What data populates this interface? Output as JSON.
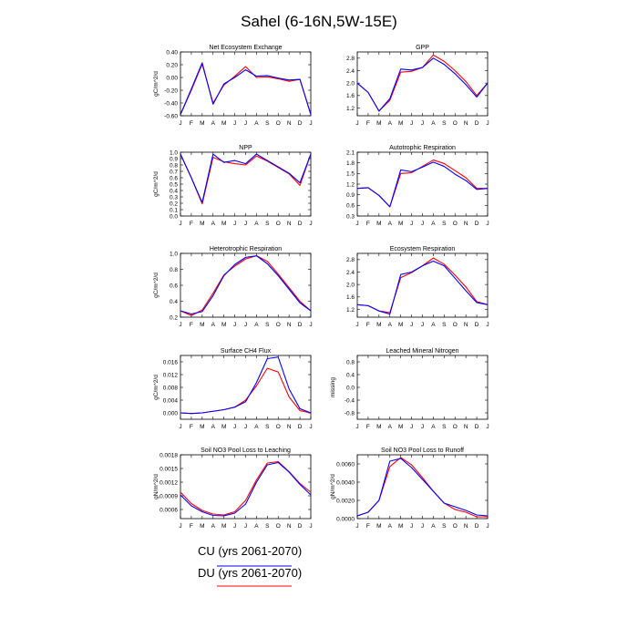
{
  "title": "Sahel (6-16N,5W-15E)",
  "legend": [
    {
      "label": "CU (yrs 2061-2070)",
      "color": "#0000ff"
    },
    {
      "label": "DU (yrs 2061-2070)",
      "color": "#ff0000"
    }
  ],
  "chart_data": [
    {
      "type": "line",
      "title": "Net Ecosystem Exchange",
      "ylabel": "gC/m^2/d",
      "categories": [
        "J",
        "F",
        "M",
        "A",
        "M",
        "J",
        "J",
        "A",
        "S",
        "O",
        "N",
        "D",
        "J"
      ],
      "ylim": [
        -0.6,
        0.4
      ],
      "yticks": [
        -0.6,
        -0.4,
        -0.2,
        0.0,
        0.2,
        0.4
      ],
      "ytick_labels": [
        "-0.60",
        "-0.40",
        "-0.20",
        "0.00",
        "0.20",
        "0.40"
      ],
      "series": [
        {
          "name": "CU (yrs 2061-2070)",
          "color": "#0000ff",
          "values": [
            -0.58,
            -0.18,
            0.23,
            -0.42,
            -0.1,
            0.0,
            0.12,
            0.02,
            0.03,
            -0.01,
            -0.04,
            -0.03,
            -0.58
          ]
        },
        {
          "name": "DU (yrs 2061-2070)",
          "color": "#ff0000",
          "values": [
            -0.58,
            -0.2,
            0.21,
            -0.4,
            -0.12,
            0.02,
            0.17,
            0.0,
            0.01,
            -0.02,
            -0.06,
            -0.03,
            -0.58
          ]
        }
      ]
    },
    {
      "type": "line",
      "title": "GPP",
      "ylabel": "",
      "categories": [
        "J",
        "F",
        "M",
        "A",
        "M",
        "J",
        "J",
        "A",
        "S",
        "O",
        "N",
        "D",
        "J"
      ],
      "ylim": [
        0.95,
        3.0
      ],
      "yticks": [
        1.2,
        1.6,
        2.0,
        2.4,
        2.8
      ],
      "ytick_labels": [
        "1.2",
        "1.6",
        "2.0",
        "2.4",
        "2.8"
      ],
      "series": [
        {
          "name": "CU (yrs 2061-2070)",
          "color": "#0000ff",
          "values": [
            2.0,
            1.7,
            1.1,
            1.5,
            2.45,
            2.42,
            2.5,
            2.8,
            2.6,
            2.3,
            1.95,
            1.55,
            2.0
          ]
        },
        {
          "name": "DU (yrs 2061-2070)",
          "color": "#ff0000",
          "values": [
            2.0,
            1.7,
            1.1,
            1.45,
            2.35,
            2.38,
            2.5,
            2.9,
            2.7,
            2.4,
            2.05,
            1.6,
            2.0
          ]
        }
      ]
    },
    {
      "type": "line",
      "title": "NPP",
      "ylabel": "gC/m^2/d",
      "categories": [
        "J",
        "F",
        "M",
        "A",
        "M",
        "J",
        "J",
        "A",
        "S",
        "O",
        "N",
        "D",
        "J"
      ],
      "ylim": [
        0.0,
        1.0
      ],
      "yticks": [
        0.0,
        0.1,
        0.2,
        0.3,
        0.4,
        0.5,
        0.6,
        0.7,
        0.8,
        0.9,
        1.0
      ],
      "ytick_labels": [
        "0.0",
        "0.1",
        "0.2",
        "0.3",
        "0.4",
        "0.5",
        "0.6",
        "0.7",
        "0.8",
        "0.9",
        "1.0"
      ],
      "series": [
        {
          "name": "CU (yrs 2061-2070)",
          "color": "#0000ff",
          "values": [
            0.97,
            0.6,
            0.21,
            0.97,
            0.84,
            0.87,
            0.82,
            0.97,
            0.87,
            0.77,
            0.67,
            0.52,
            0.97
          ]
        },
        {
          "name": "DU (yrs 2061-2070)",
          "color": "#ff0000",
          "values": [
            0.97,
            0.6,
            0.19,
            0.92,
            0.85,
            0.82,
            0.8,
            0.94,
            0.86,
            0.76,
            0.66,
            0.48,
            0.97
          ]
        }
      ]
    },
    {
      "type": "line",
      "title": "Autotrophic Respiration",
      "ylabel": "",
      "categories": [
        "J",
        "F",
        "M",
        "A",
        "M",
        "J",
        "J",
        "A",
        "S",
        "O",
        "N",
        "D",
        "J"
      ],
      "ylim": [
        0.3,
        2.1
      ],
      "yticks": [
        0.3,
        0.6,
        0.9,
        1.2,
        1.5,
        1.8,
        2.1
      ],
      "ytick_labels": [
        "0.3",
        "0.6",
        "0.9",
        "1.2",
        "1.5",
        "1.8",
        "2.1"
      ],
      "series": [
        {
          "name": "CU (yrs 2061-2070)",
          "color": "#0000ff",
          "values": [
            1.08,
            1.1,
            0.88,
            0.56,
            1.6,
            1.55,
            1.68,
            1.82,
            1.7,
            1.48,
            1.3,
            1.05,
            1.08
          ]
        },
        {
          "name": "DU (yrs 2061-2070)",
          "color": "#ff0000",
          "values": [
            1.08,
            1.1,
            0.88,
            0.56,
            1.5,
            1.52,
            1.7,
            1.88,
            1.78,
            1.58,
            1.38,
            1.08,
            1.08
          ]
        }
      ]
    },
    {
      "type": "line",
      "title": "Heterotrophic Respiration",
      "ylabel": "gC/m^2/d",
      "categories": [
        "J",
        "F",
        "M",
        "A",
        "M",
        "J",
        "J",
        "A",
        "S",
        "O",
        "N",
        "D",
        "J"
      ],
      "ylim": [
        0.2,
        1.0
      ],
      "yticks": [
        0.2,
        0.4,
        0.6,
        0.8,
        1.0
      ],
      "ytick_labels": [
        "0.2",
        "0.4",
        "0.6",
        "0.8",
        "1.0"
      ],
      "series": [
        {
          "name": "CU (yrs 2061-2070)",
          "color": "#0000ff",
          "values": [
            0.28,
            0.24,
            0.27,
            0.47,
            0.72,
            0.86,
            0.95,
            0.97,
            0.87,
            0.72,
            0.55,
            0.38,
            0.28
          ]
        },
        {
          "name": "DU (yrs 2061-2070)",
          "color": "#ff0000",
          "values": [
            0.28,
            0.22,
            0.29,
            0.5,
            0.73,
            0.84,
            0.93,
            0.97,
            0.9,
            0.74,
            0.57,
            0.4,
            0.28
          ]
        }
      ]
    },
    {
      "type": "line",
      "title": "Ecosystem Respiration",
      "ylabel": "",
      "categories": [
        "J",
        "F",
        "M",
        "A",
        "M",
        "J",
        "J",
        "A",
        "S",
        "O",
        "N",
        "D",
        "J"
      ],
      "ylim": [
        0.95,
        3.0
      ],
      "yticks": [
        1.2,
        1.6,
        2.0,
        2.4,
        2.8
      ],
      "ytick_labels": [
        "1.2",
        "1.6",
        "2.0",
        "2.4",
        "2.8"
      ],
      "series": [
        {
          "name": "CU (yrs 2061-2070)",
          "color": "#0000ff",
          "values": [
            1.35,
            1.32,
            1.15,
            1.05,
            2.32,
            2.4,
            2.6,
            2.75,
            2.6,
            2.2,
            1.8,
            1.42,
            1.35
          ]
        },
        {
          "name": "DU (yrs 2061-2070)",
          "color": "#ff0000",
          "values": [
            1.35,
            1.32,
            1.15,
            1.1,
            2.22,
            2.38,
            2.6,
            2.85,
            2.65,
            2.3,
            1.92,
            1.45,
            1.35
          ]
        }
      ]
    },
    {
      "type": "line",
      "title": "Surface CH4 Flux",
      "ylabel": "gC/m^2/d",
      "categories": [
        "J",
        "F",
        "M",
        "A",
        "M",
        "J",
        "J",
        "A",
        "S",
        "O",
        "N",
        "D",
        "J"
      ],
      "ylim": [
        -0.002,
        0.018
      ],
      "yticks": [
        0.0,
        0.004,
        0.008,
        0.012,
        0.016
      ],
      "ytick_labels": [
        "0.000",
        "0.004",
        "0.008",
        "0.012",
        "0.016"
      ],
      "series": [
        {
          "name": "CU (yrs 2061-2070)",
          "color": "#0000ff",
          "values": [
            0.0,
            -0.0002,
            0.0,
            0.0005,
            0.001,
            0.0018,
            0.0035,
            0.0095,
            0.017,
            0.0175,
            0.0075,
            0.0013,
            0.0
          ]
        },
        {
          "name": "DU (yrs 2061-2070)",
          "color": "#ff0000",
          "values": [
            0.0,
            -0.0002,
            0.0,
            0.0005,
            0.001,
            0.0018,
            0.004,
            0.0085,
            0.014,
            0.0128,
            0.005,
            0.0007,
            0.0
          ]
        }
      ]
    },
    {
      "type": "line",
      "title": "Leached Mineral Nitrogen",
      "ylabel": "missing",
      "categories": [
        "J",
        "F",
        "M",
        "A",
        "M",
        "J",
        "J",
        "A",
        "S",
        "O",
        "N",
        "D",
        "J"
      ],
      "ylim": [
        -1.0,
        1.0
      ],
      "yticks": [
        -0.8,
        -0.4,
        0.0,
        0.4,
        0.8
      ],
      "ytick_labels": [
        "-0.8",
        "-0.4",
        "0.0",
        "0.4",
        "0.8"
      ],
      "series": []
    },
    {
      "type": "line",
      "title": "Soil NO3 Pool Loss to Leaching",
      "ylabel": "gN/m^2/d",
      "categories": [
        "J",
        "F",
        "M",
        "A",
        "M",
        "J",
        "J",
        "A",
        "S",
        "O",
        "N",
        "D",
        "J"
      ],
      "ylim": [
        0.0004,
        0.0018
      ],
      "yticks": [
        0.0006,
        0.0009,
        0.0012,
        0.0015,
        0.0018
      ],
      "ytick_labels": [
        "0.0006",
        "0.0009",
        "0.0012",
        "0.0015",
        "0.0018"
      ],
      "series": [
        {
          "name": "CU (yrs 2061-2070)",
          "color": "#0000ff",
          "values": [
            0.00092,
            0.00068,
            0.00055,
            0.00047,
            0.00046,
            0.00052,
            0.00072,
            0.0012,
            0.00158,
            0.00163,
            0.00142,
            0.00115,
            0.00092
          ]
        },
        {
          "name": "DU (yrs 2061-2070)",
          "color": "#ff0000",
          "values": [
            0.00098,
            0.00073,
            0.00058,
            0.0005,
            0.00048,
            0.00055,
            0.0008,
            0.00125,
            0.00162,
            0.00165,
            0.00143,
            0.00117,
            0.00098
          ]
        }
      ]
    },
    {
      "type": "line",
      "title": "Soil NO3 Pool Loss to Runoff",
      "ylabel": "gN/m^2/d",
      "categories": [
        "J",
        "F",
        "M",
        "A",
        "M",
        "J",
        "J",
        "A",
        "S",
        "O",
        "N",
        "D",
        "J"
      ],
      "ylim": [
        0.0,
        0.007
      ],
      "yticks": [
        0.0,
        0.002,
        0.004,
        0.006
      ],
      "ytick_labels": [
        "0.0000",
        "0.0020",
        "0.0040",
        "0.0060"
      ],
      "series": [
        {
          "name": "CU (yrs 2061-2070)",
          "color": "#0000ff",
          "values": [
            0.0003,
            0.0007,
            0.002,
            0.0063,
            0.0066,
            0.0056,
            0.0043,
            0.003,
            0.0017,
            0.0013,
            0.0009,
            0.0004,
            0.0003
          ]
        },
        {
          "name": "DU (yrs 2061-2070)",
          "color": "#ff0000",
          "values": [
            0.0003,
            0.0007,
            0.002,
            0.0057,
            0.0067,
            0.0059,
            0.0045,
            0.003,
            0.0017,
            0.001,
            0.0007,
            0.0002,
            0.0002
          ]
        }
      ]
    }
  ]
}
